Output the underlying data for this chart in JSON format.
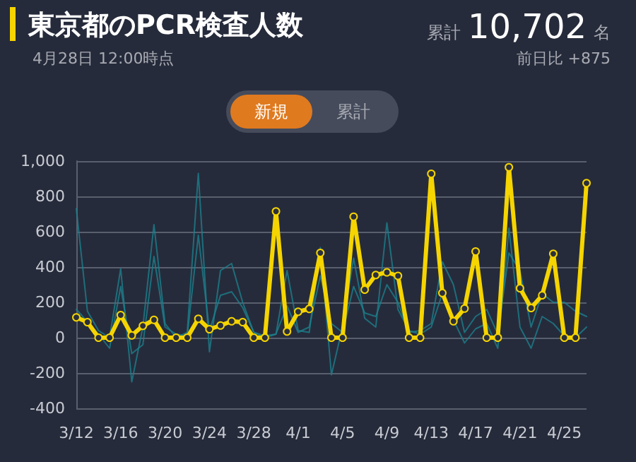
{
  "chart_data": {
    "type": "line",
    "title": "東京都のPCR検査人数",
    "subtitle": "4月28日 12:00時点",
    "annotations": [
      "累計",
      "10,702",
      "名",
      "前日比 +875",
      "新規",
      "累計"
    ],
    "categories": [
      "3/12",
      null,
      null,
      null,
      "3/16",
      null,
      null,
      null,
      "3/20",
      null,
      null,
      null,
      "3/24",
      null,
      null,
      null,
      "3/28",
      null,
      null,
      null,
      "4/1",
      null,
      null,
      null,
      "4/5",
      null,
      null,
      null,
      "4/9",
      null,
      null,
      null,
      "4/13",
      null,
      null,
      null,
      "4/17",
      null,
      null,
      null,
      "4/21",
      null,
      null,
      null,
      "4/25",
      null,
      null
    ],
    "series": [
      {
        "color": "#1d7f8c",
        "marker": "none",
        "values": [
          730,
          150,
          40,
          0,
          390,
          -250,
          60,
          640,
          80,
          0,
          30,
          930,
          -80,
          380,
          420,
          200,
          30,
          0,
          20,
          380,
          40,
          30,
          510,
          -210,
          60,
          450,
          110,
          60,
          650,
          160,
          40,
          20,
          60,
          250,
          100,
          -30,
          50,
          80,
          -60,
          620,
          60,
          -60,
          120,
          80,
          10,
          0,
          60
        ]
      },
      {
        "color": "#1d7f8c",
        "marker": "none",
        "values": [
          160,
          90,
          20,
          -60,
          290,
          -90,
          -40,
          460,
          60,
          20,
          10,
          580,
          40,
          240,
          260,
          170,
          30,
          10,
          20,
          180,
          30,
          60,
          350,
          80,
          30,
          290,
          140,
          120,
          300,
          200,
          30,
          40,
          80,
          430,
          300,
          30,
          120,
          160,
          20,
          480,
          380,
          60,
          250,
          200,
          200,
          150,
          120
        ]
      },
      {
        "color": "#f5d400",
        "values": [
          115,
          88,
          0,
          0,
          128,
          13,
          67,
          101,
          0,
          0,
          0,
          107,
          48,
          69,
          93,
          88,
          0,
          0,
          715,
          35,
          147,
          163,
          480,
          0,
          0,
          685,
          272,
          355,
          370,
          350,
          0,
          0,
          928,
          253,
          93,
          165,
          488,
          0,
          0,
          965,
          280,
          168,
          240,
          475,
          0,
          0,
          875
        ]
      }
    ],
    "ylim": [
      -400,
      1000
    ],
    "yticks": [
      -400,
      -200,
      0,
      200,
      400,
      600,
      800,
      {
        "value": 1000,
        "label": "1,000"
      }
    ],
    "grid": "y",
    "marker": "circle",
    "line_style": "solid"
  }
}
